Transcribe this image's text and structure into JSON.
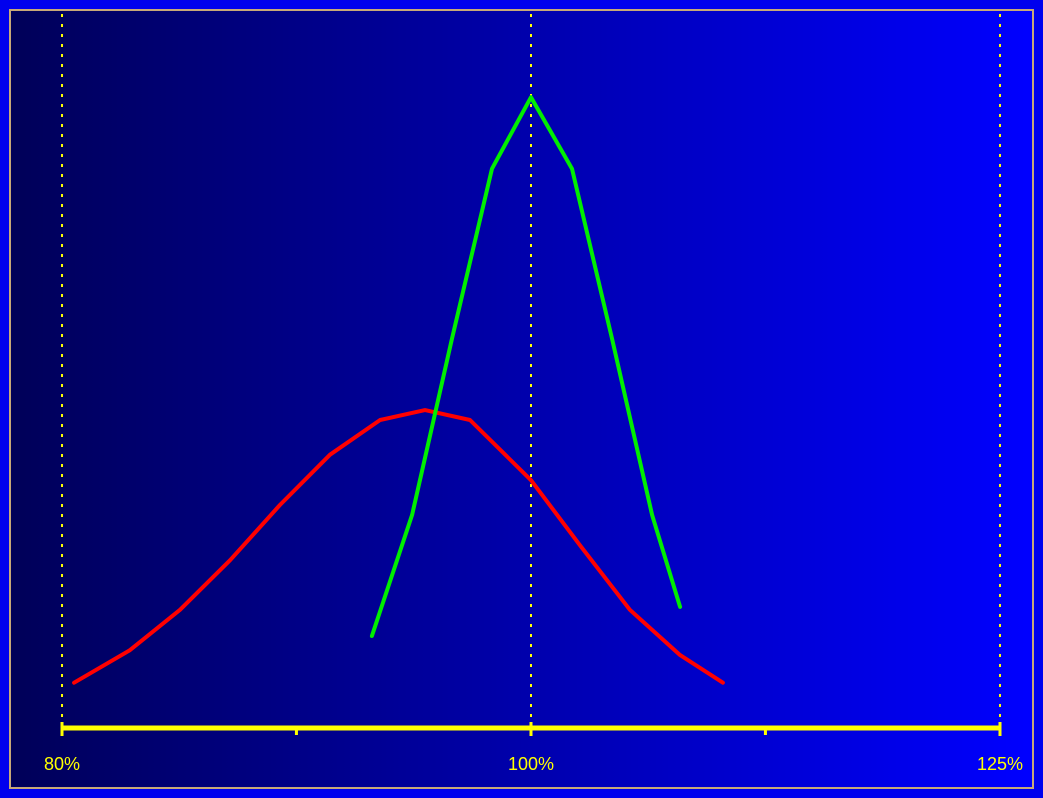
{
  "chart_data": {
    "type": "line",
    "xscale": "log",
    "xlim": [
      80,
      125
    ],
    "ylim": [
      0,
      100
    ],
    "xticks": [
      {
        "value": 80,
        "label": "80%"
      },
      {
        "value": 100,
        "label": "100%"
      },
      {
        "value": 125,
        "label": "125%"
      }
    ],
    "xminorticks": [
      89.44,
      111.8
    ],
    "grid": true,
    "grid_color": "#ffff00",
    "axis_color": "#ffff00",
    "series": [
      {
        "color": "#ff0000",
        "x": [
          80.46,
          82.63,
          84.62,
          86.66,
          88.74,
          90.88,
          93.07,
          95.08,
          97.14,
          100.0,
          102.36,
          104.82,
          107.35,
          109.56
        ],
        "values": [
          6.4,
          11.0,
          16.7,
          23.7,
          31.5,
          38.6,
          43.5,
          44.9,
          43.5,
          35.0,
          25.8,
          16.7,
          10.3,
          6.4
        ]
      },
      {
        "color": "#00ee00",
        "x": [
          92.71,
          94.5,
          96.31,
          98.16,
          100.0,
          101.97,
          103.93,
          105.93,
          107.35
        ],
        "values": [
          13.0,
          30.1,
          55.0,
          79.0,
          89.1,
          79.0,
          55.0,
          30.1,
          17.1
        ]
      }
    ]
  }
}
